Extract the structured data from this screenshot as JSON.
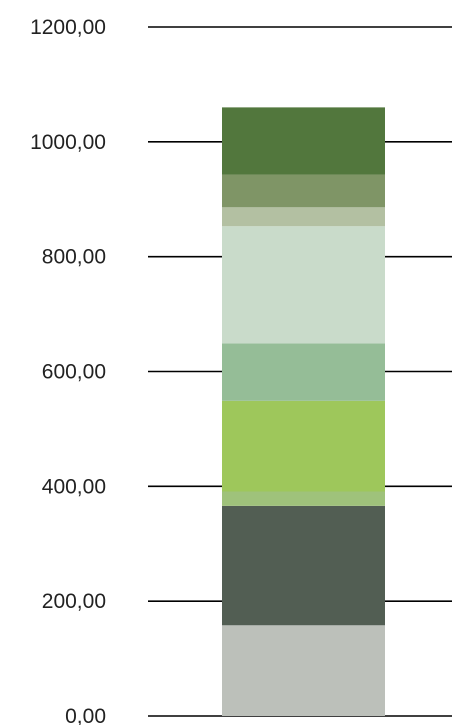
{
  "chart_data": {
    "type": "bar",
    "stacked": true,
    "categories": [
      ""
    ],
    "ylim": [
      0,
      1200
    ],
    "y_ticks": [
      0,
      200,
      400,
      600,
      800,
      1000,
      1200
    ],
    "y_tick_labels": [
      "0,00",
      "200,00",
      "400,00",
      "600,00",
      "800,00",
      "1000,00",
      "1200,00"
    ],
    "grid": true,
    "legend": "none",
    "title": "",
    "xlabel": "",
    "ylabel": "",
    "segments": [
      {
        "value": 158,
        "color": "#bcc0ba"
      },
      {
        "value": 208,
        "color": "#525e53"
      },
      {
        "value": 25,
        "color": "#9fc27b"
      },
      {
        "value": 158,
        "color": "#9ec75b"
      },
      {
        "value": 100,
        "color": "#95bd97"
      },
      {
        "value": 204,
        "color": "#c9dbca"
      },
      {
        "value": 33,
        "color": "#b3c0a2"
      },
      {
        "value": 57,
        "color": "#7f9566"
      },
      {
        "value": 117,
        "color": "#52773d"
      }
    ]
  }
}
